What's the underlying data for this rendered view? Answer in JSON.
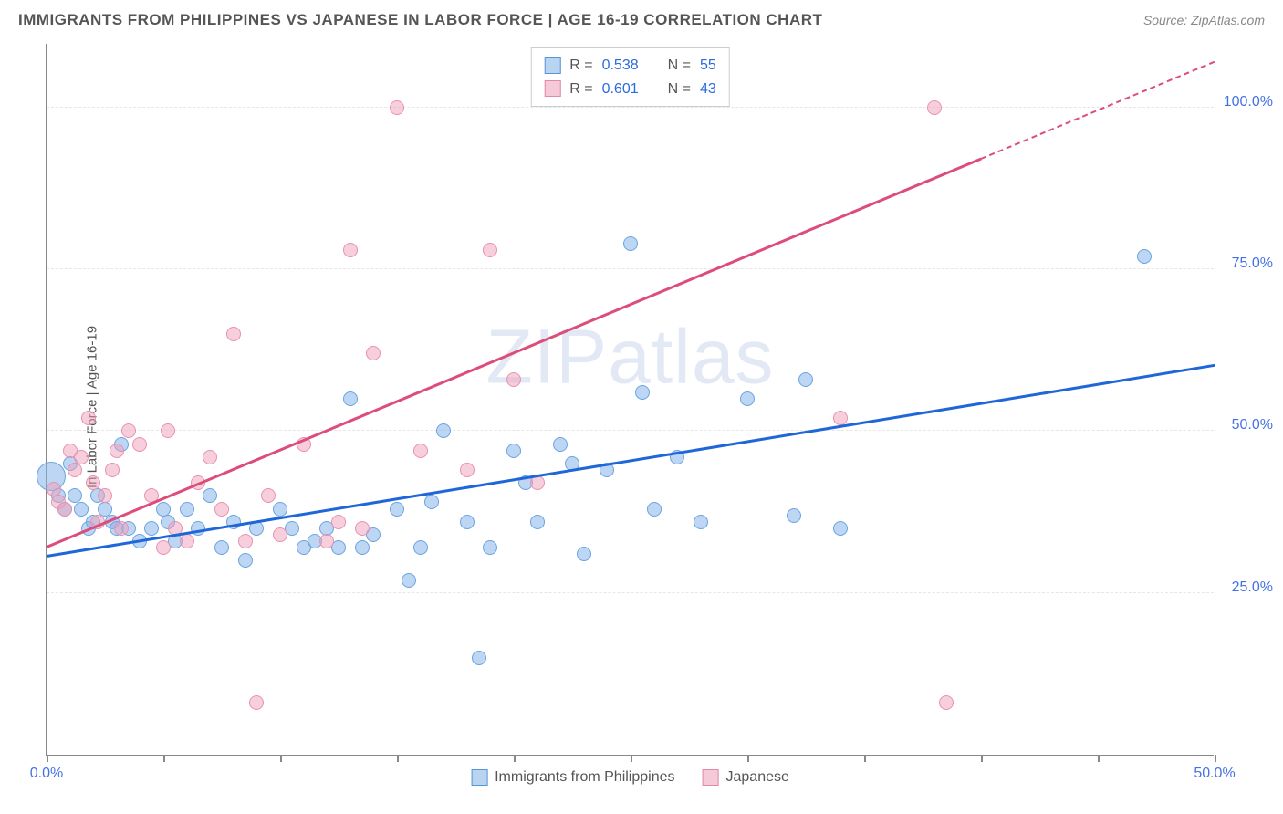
{
  "header": {
    "title": "IMMIGRANTS FROM PHILIPPINES VS JAPANESE IN LABOR FORCE | AGE 16-19 CORRELATION CHART",
    "source": "Source: ZipAtlas.com"
  },
  "chart": {
    "type": "scatter",
    "ylabel": "In Labor Force | Age 16-19",
    "xlim": [
      0,
      50
    ],
    "ylim": [
      0,
      110
    ],
    "xtick_positions": [
      0,
      5,
      10,
      15,
      20,
      25,
      30,
      35,
      40,
      45,
      50
    ],
    "xtick_labels": {
      "0": "0.0%",
      "50": "50.0%"
    },
    "ytick_positions": [
      25,
      50,
      75,
      100
    ],
    "ytick_labels": {
      "25": "25.0%",
      "50": "50.0%",
      "75": "75.0%",
      "100": "100.0%"
    },
    "grid_color": "#e6e6e6",
    "background_color": "#ffffff",
    "axis_color": "#888888",
    "watermark": "ZIPatlas",
    "series": [
      {
        "name": "Immigrants from Philippines",
        "color_fill": "rgba(135, 180, 235, 0.55)",
        "color_stroke": "#6aa4e0",
        "swatch_fill": "#b8d4f0",
        "swatch_stroke": "#5a94d8",
        "trend_color": "#1f67d8",
        "trend_start": [
          0,
          30.5
        ],
        "trend_end": [
          50,
          60
        ],
        "trend_dash_start": null,
        "R": "0.538",
        "N": "55",
        "marker_radius": 8,
        "points": [
          [
            0.2,
            43,
            16
          ],
          [
            0.5,
            40
          ],
          [
            0.8,
            38
          ],
          [
            1.0,
            45
          ],
          [
            1.2,
            40
          ],
          [
            1.5,
            38
          ],
          [
            1.8,
            35
          ],
          [
            2.0,
            36
          ],
          [
            2.2,
            40
          ],
          [
            2.5,
            38
          ],
          [
            2.8,
            36
          ],
          [
            3.0,
            35
          ],
          [
            3.2,
            48
          ],
          [
            3.5,
            35
          ],
          [
            4.0,
            33
          ],
          [
            4.5,
            35
          ],
          [
            5.0,
            38
          ],
          [
            5.2,
            36
          ],
          [
            5.5,
            33
          ],
          [
            6.0,
            38
          ],
          [
            6.5,
            35
          ],
          [
            7.0,
            40
          ],
          [
            7.5,
            32
          ],
          [
            8.0,
            36
          ],
          [
            8.5,
            30
          ],
          [
            9.0,
            35
          ],
          [
            10.0,
            38
          ],
          [
            10.5,
            35
          ],
          [
            11.0,
            32
          ],
          [
            11.5,
            33
          ],
          [
            12.0,
            35
          ],
          [
            12.5,
            32
          ],
          [
            13.0,
            55
          ],
          [
            13.5,
            32
          ],
          [
            14.0,
            34
          ],
          [
            15.0,
            38
          ],
          [
            15.5,
            27
          ],
          [
            16.0,
            32
          ],
          [
            16.5,
            39
          ],
          [
            17.0,
            50
          ],
          [
            18.0,
            36
          ],
          [
            18.5,
            15
          ],
          [
            19.0,
            32
          ],
          [
            20.0,
            47
          ],
          [
            20.5,
            42
          ],
          [
            21.0,
            36
          ],
          [
            22.0,
            48
          ],
          [
            22.5,
            45
          ],
          [
            23.0,
            31
          ],
          [
            24.0,
            44
          ],
          [
            25.0,
            79
          ],
          [
            25.5,
            56
          ],
          [
            26.0,
            38
          ],
          [
            27.0,
            46
          ],
          [
            28.0,
            36
          ],
          [
            30.0,
            55
          ],
          [
            32.0,
            37
          ],
          [
            32.5,
            58
          ],
          [
            34.0,
            35
          ],
          [
            47.0,
            77
          ]
        ]
      },
      {
        "name": "Japanese",
        "color_fill": "rgba(240, 160, 185, 0.5)",
        "color_stroke": "#e891b0",
        "swatch_fill": "#f5c9d8",
        "swatch_stroke": "#e288a8",
        "trend_color": "#dd4d7a",
        "trend_start": [
          0,
          32
        ],
        "trend_end": [
          50,
          107
        ],
        "trend_dash_start": [
          40,
          92
        ],
        "R": "0.601",
        "N": "43",
        "marker_radius": 8,
        "points": [
          [
            0.3,
            41
          ],
          [
            0.5,
            39
          ],
          [
            0.8,
            38
          ],
          [
            1.0,
            47
          ],
          [
            1.2,
            44
          ],
          [
            1.5,
            46
          ],
          [
            1.8,
            52
          ],
          [
            2.0,
            42
          ],
          [
            2.2,
            36
          ],
          [
            2.5,
            40
          ],
          [
            2.8,
            44
          ],
          [
            3.0,
            47
          ],
          [
            3.2,
            35
          ],
          [
            3.5,
            50
          ],
          [
            4.0,
            48
          ],
          [
            4.5,
            40
          ],
          [
            5.0,
            32
          ],
          [
            5.2,
            50
          ],
          [
            5.5,
            35
          ],
          [
            6.0,
            33
          ],
          [
            6.5,
            42
          ],
          [
            7.0,
            46
          ],
          [
            7.5,
            38
          ],
          [
            8.0,
            65
          ],
          [
            8.5,
            33
          ],
          [
            9.0,
            8
          ],
          [
            9.5,
            40
          ],
          [
            10.0,
            34
          ],
          [
            11.0,
            48
          ],
          [
            12.0,
            33
          ],
          [
            12.5,
            36
          ],
          [
            13.0,
            78
          ],
          [
            13.5,
            35
          ],
          [
            14.0,
            62
          ],
          [
            15.0,
            100
          ],
          [
            16.0,
            47
          ],
          [
            18.0,
            44
          ],
          [
            19.0,
            78
          ],
          [
            20.0,
            58
          ],
          [
            21.0,
            42
          ],
          [
            34.0,
            52
          ],
          [
            38.0,
            100
          ],
          [
            38.5,
            8
          ]
        ]
      }
    ],
    "legend_top": {
      "rows": [
        {
          "series": 0,
          "r_label": "R =",
          "n_label": "N ="
        },
        {
          "series": 1,
          "r_label": "R =",
          "n_label": "N ="
        }
      ]
    }
  }
}
